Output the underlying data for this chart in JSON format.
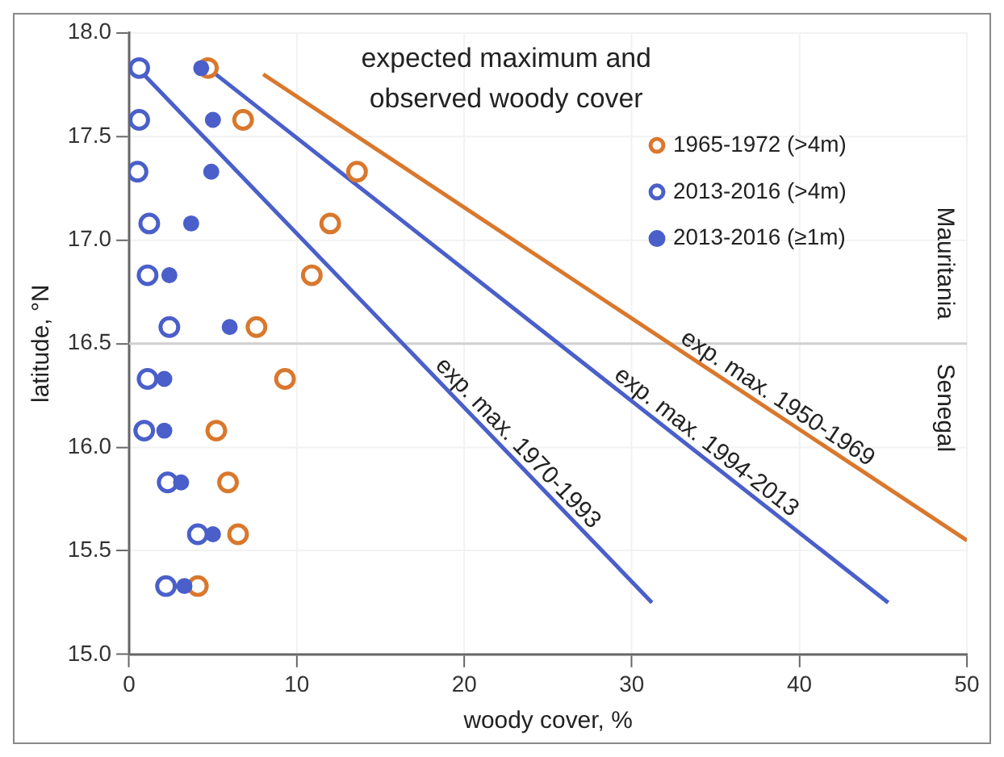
{
  "chart_data": {
    "type": "scatter",
    "title": "expected maximum and\nobserved woody cover",
    "xlabel": "woody cover, %",
    "ylabel": "latitude, °N",
    "xlim": [
      0,
      50
    ],
    "xticks": [
      0,
      10,
      20,
      30,
      40,
      50
    ],
    "ylim": [
      15,
      18
    ],
    "yticks": [
      {
        "value": 15,
        "label": "15.0"
      },
      {
        "value": 15.5,
        "label": "15.5"
      },
      {
        "value": 16,
        "label": "16.0"
      },
      {
        "value": 16.5,
        "label": "16.5"
      },
      {
        "value": 17,
        "label": "17.0"
      },
      {
        "value": 17.5,
        "label": "17.5"
      },
      {
        "value": 18,
        "label": "18.0"
      }
    ],
    "grid": true,
    "legend": "top right",
    "series": [
      {
        "name": "1965-1972 (>4m)",
        "color": "#d9782d",
        "marker": "circle",
        "x": [
          4.7,
          6.8,
          13.6,
          12.0,
          10.9,
          7.6,
          9.3,
          5.2,
          5.9,
          6.5,
          4.1
        ],
        "values": [
          17.83,
          17.58,
          17.33,
          17.08,
          16.83,
          16.58,
          16.33,
          16.08,
          15.83,
          15.58,
          15.33
        ]
      },
      {
        "name": "2013-2016 (>4m)",
        "color": "#4a5fc9",
        "marker": "circle",
        "x": [
          0.6,
          0.6,
          0.5,
          1.2,
          1.1,
          2.4,
          1.1,
          0.9,
          2.3,
          4.1,
          2.2
        ],
        "values": [
          17.83,
          17.58,
          17.33,
          17.08,
          16.83,
          16.58,
          16.33,
          16.08,
          15.83,
          15.58,
          15.33
        ]
      },
      {
        "name": "2013-2016 (≥1m)",
        "color": "#4a5fc9",
        "marker": "circle",
        "x": [
          4.3,
          5.0,
          4.9,
          3.7,
          2.4,
          6.0,
          2.1,
          2.1,
          3.1,
          5.0,
          3.3
        ],
        "values": [
          17.83,
          17.58,
          17.33,
          17.08,
          16.83,
          16.58,
          16.33,
          16.08,
          15.83,
          15.58,
          15.33
        ]
      },
      {
        "type": "line",
        "name": "exp. max. 1970-1993",
        "color": "#4a5fc9",
        "x": [
          0.5,
          31.2
        ],
        "values": [
          17.83,
          15.25
        ]
      },
      {
        "type": "line",
        "name": "exp. max. 1994-2013",
        "color": "#4a5fc9",
        "x": [
          4.7,
          45.3
        ],
        "values": [
          17.83,
          15.25
        ]
      },
      {
        "type": "line",
        "name": "exp. max. 1950-1969",
        "color": "#d9782d",
        "x": [
          8,
          50
        ],
        "values": [
          17.8,
          15.55
        ]
      }
    ],
    "ref_lines": [
      {
        "axis": "y",
        "value": 16.5,
        "color": "#d0d0d0"
      }
    ],
    "annotations": [
      "Mauritania",
      "Senegal"
    ]
  }
}
